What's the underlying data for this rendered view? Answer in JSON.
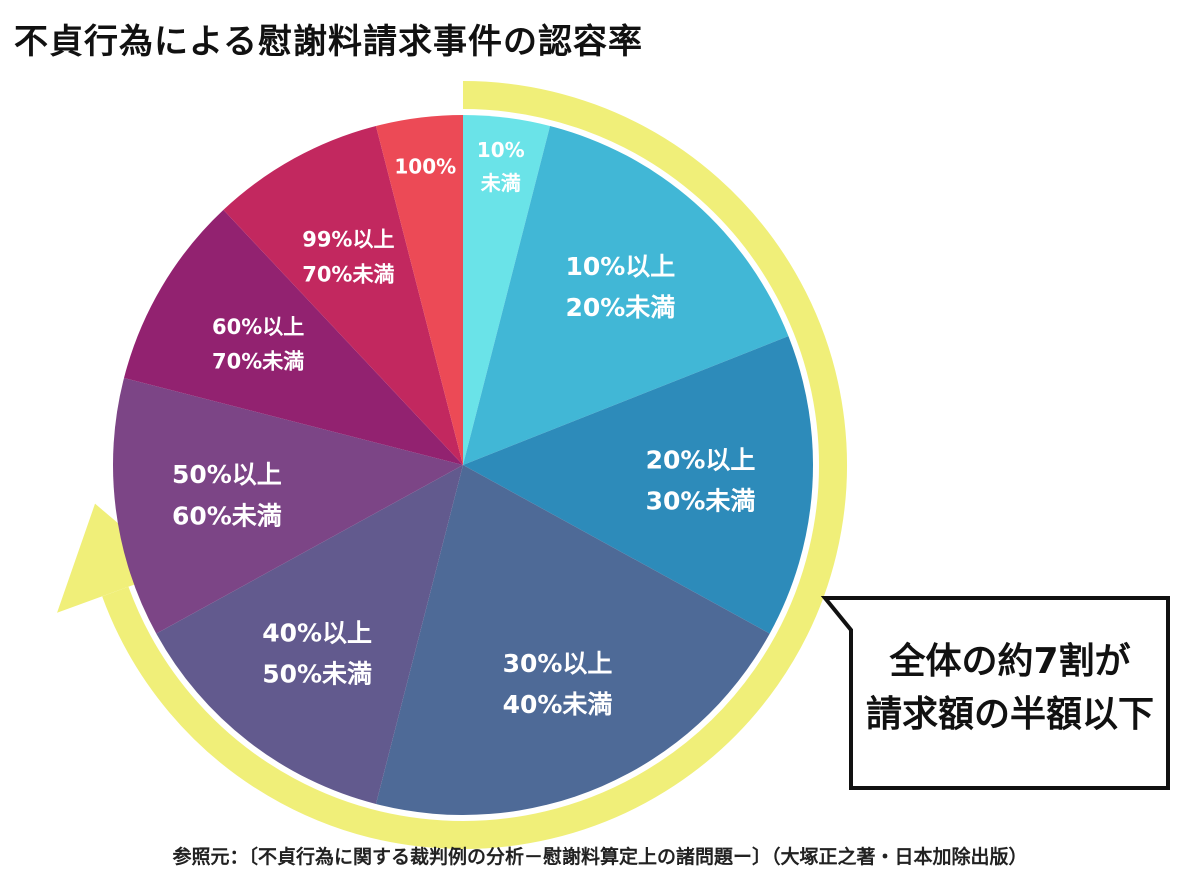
{
  "chart_data": {
    "type": "pie",
    "title": "不貞行為による慰謝料請求事件の認容率",
    "start_angle": "12 o'clock",
    "direction": "clockwise",
    "slices": [
      {
        "label_lines": [
          "10%",
          "未満"
        ],
        "value": 4,
        "color": "#6ae3e8"
      },
      {
        "label_lines": [
          "10%以上",
          "20%未満"
        ],
        "value": 15,
        "color": "#41b7d6"
      },
      {
        "label_lines": [
          "20%以上",
          "30%未満"
        ],
        "value": 14,
        "color": "#2d8bba"
      },
      {
        "label_lines": [
          "30%以上",
          "40%未満"
        ],
        "value": 21,
        "color": "#4e6a97"
      },
      {
        "label_lines": [
          "40%以上",
          "50%未満"
        ],
        "value": 13,
        "color": "#625a8e"
      },
      {
        "label_lines": [
          "50%以上",
          "60%未満"
        ],
        "value": 12,
        "color": "#7c4586"
      },
      {
        "label_lines": [
          "60%以上",
          "70%未満"
        ],
        "value": 9,
        "color": "#922270"
      },
      {
        "label_lines": [
          "99%以上",
          "70%未満"
        ],
        "value": 8,
        "color": "#c2285f"
      },
      {
        "label_lines": [
          "100%"
        ],
        "value": 4,
        "color": "#ec4a56"
      }
    ],
    "annotation": {
      "lines": [
        "全体の約7割が",
        "請求額の半額以下"
      ],
      "highlight_color": "#f0ef79"
    }
  },
  "source_note": "参照元：〔不貞行為に関する裁判例の分析－慰謝料算定上の諸問題ー〕（大塚正之著・日本加除出版）"
}
